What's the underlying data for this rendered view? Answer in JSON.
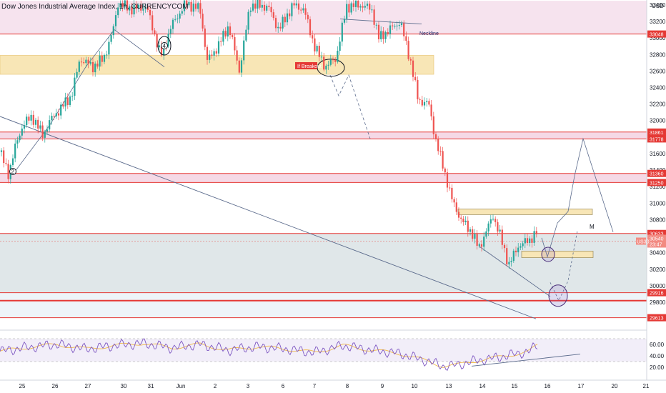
{
  "header": {
    "title": "Dow Jones Industrial Average Index, 1h, CURRENCYCOM",
    "currency": "USD"
  },
  "colors": {
    "up": "#26a69a",
    "down": "#ef5350",
    "resistance_band": "#f8e6b6",
    "pink_band": "#f3cfe0",
    "red_line": "#e53935",
    "rsi": "#7e57c2",
    "rsi_ma": "#f0b94a",
    "trend": "#5b6b8c"
  },
  "chart_data": {
    "type": "candlestick",
    "title": "Dow Jones Industrial Average Index, 1h, CURRENCYCOM",
    "ylim": [
      29480,
      33460
    ],
    "y_ticks": [
      29600,
      29800,
      30000,
      30200,
      30400,
      30600,
      30800,
      31000,
      31200,
      31400,
      31600,
      31800,
      32000,
      32200,
      32400,
      32600,
      32800,
      33000,
      33200,
      33400
    ],
    "x_ticks": [
      "25",
      "26",
      "27",
      "30",
      "31",
      "Jun",
      "2",
      "3",
      "6",
      "7",
      "8",
      "9",
      "10",
      "13",
      "14",
      "15",
      "16",
      "17",
      "20",
      "21"
    ],
    "series_anchors": [
      [
        0,
        31620
      ],
      [
        12,
        31350
      ],
      [
        22,
        31700
      ],
      [
        32,
        31950
      ],
      [
        45,
        32050
      ],
      [
        60,
        31820
      ],
      [
        70,
        32000
      ],
      [
        85,
        32150
      ],
      [
        100,
        32300
      ],
      [
        112,
        32750
      ],
      [
        130,
        32650
      ],
      [
        145,
        32750
      ],
      [
        158,
        33080
      ],
      [
        165,
        33420
      ],
      [
        185,
        33350
      ],
      [
        205,
        33380
      ],
      [
        225,
        32780
      ],
      [
        240,
        33150
      ],
      [
        260,
        33420
      ],
      [
        280,
        33350
      ],
      [
        290,
        32720
      ],
      [
        305,
        32900
      ],
      [
        320,
        33150
      ],
      [
        335,
        32600
      ],
      [
        350,
        33400
      ],
      [
        375,
        33380
      ],
      [
        390,
        33100
      ],
      [
        410,
        33400
      ],
      [
        425,
        33350
      ],
      [
        440,
        32900
      ],
      [
        455,
        32650
      ],
      [
        470,
        32750
      ],
      [
        485,
        33380
      ],
      [
        505,
        33400
      ],
      [
        520,
        33350
      ],
      [
        530,
        33000
      ],
      [
        545,
        33100
      ],
      [
        560,
        33200
      ],
      [
        575,
        32700
      ],
      [
        585,
        32250
      ],
      [
        600,
        32200
      ],
      [
        610,
        31750
      ],
      [
        620,
        31450
      ],
      [
        632,
        31050
      ],
      [
        645,
        30800
      ],
      [
        660,
        30650
      ],
      [
        670,
        30450
      ],
      [
        680,
        30650
      ],
      [
        690,
        30850
      ],
      [
        700,
        30600
      ],
      [
        712,
        30250
      ],
      [
        725,
        30480
      ],
      [
        740,
        30550
      ],
      [
        752,
        30650
      ]
    ],
    "price_labels": [
      {
        "value": 33048,
        "text": "33048",
        "color": "#e53935"
      },
      {
        "value": 31861,
        "text": "31861",
        "color": "#e53935"
      },
      {
        "value": 31778,
        "text": "31778",
        "color": "#e53935"
      },
      {
        "value": 31360,
        "text": "31360",
        "color": "#e53935"
      },
      {
        "value": 31250,
        "text": "31250",
        "color": "#e53935"
      },
      {
        "value": 30633,
        "text": "30633",
        "color": "#e53935"
      },
      {
        "value": 29916,
        "text": "29916",
        "color": "#e53935"
      },
      {
        "value": 29613,
        "text": "29613",
        "color": "#e53935"
      }
    ],
    "current_price": {
      "value": 30540,
      "text": "30540",
      "countdown": "23:47",
      "symbol": "US30"
    },
    "annotations": {
      "neckline": "Neckline",
      "breakout": "If Breakout",
      "wave2": "2",
      "wave4": "4",
      "wave_m": "M"
    },
    "rsi": {
      "ylim": [
        10,
        80
      ],
      "y_ticks": [
        20.0,
        40.0,
        60.0
      ],
      "y_tick_labels": [
        "20.00",
        "40.00",
        "60.00"
      ],
      "levels": [
        30,
        70
      ],
      "anchors": [
        [
          0,
          48
        ],
        [
          40,
          55
        ],
        [
          80,
          60
        ],
        [
          120,
          52
        ],
        [
          160,
          58
        ],
        [
          200,
          62
        ],
        [
          240,
          54
        ],
        [
          280,
          60
        ],
        [
          320,
          50
        ],
        [
          360,
          56
        ],
        [
          400,
          52
        ],
        [
          440,
          46
        ],
        [
          480,
          58
        ],
        [
          520,
          50
        ],
        [
          560,
          44
        ],
        [
          600,
          30
        ],
        [
          620,
          22
        ],
        [
          640,
          24
        ],
        [
          660,
          30
        ],
        [
          700,
          38
        ],
        [
          740,
          48
        ],
        [
          752,
          58
        ]
      ]
    }
  }
}
